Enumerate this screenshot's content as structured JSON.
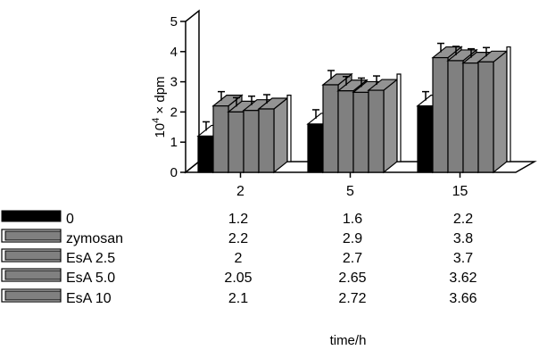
{
  "chart_data": {
    "type": "bar",
    "style": "3d",
    "categories": [
      "2",
      "5",
      "15"
    ],
    "series": [
      {
        "name": "0",
        "values": [
          1.2,
          1.6,
          2.2
        ],
        "color": "#000000"
      },
      {
        "name": "zymosan",
        "values": [
          2.2,
          2.9,
          3.8
        ],
        "color": "#808080"
      },
      {
        "name": "EsA 2.5",
        "values": [
          2,
          2.7,
          3.7
        ],
        "color": "#808080"
      },
      {
        "name": "EsA 5.0",
        "values": [
          2.05,
          2.65,
          3.62
        ],
        "color": "#808080"
      },
      {
        "name": "EsA 10",
        "values": [
          2.1,
          2.72,
          3.66
        ],
        "color": "#808080"
      }
    ],
    "table": [
      [
        "1.2",
        "1.6",
        "2.2"
      ],
      [
        "2.2",
        "2.9",
        "3.8"
      ],
      [
        "2",
        "2.7",
        "3.7"
      ],
      [
        "2.05",
        "2.65",
        "3.62"
      ],
      [
        "2.1",
        "2.72",
        "3.66"
      ]
    ],
    "error_bars": true,
    "ylim": [
      0,
      5
    ],
    "yticks": [
      "0",
      "1",
      "2",
      "3",
      "4",
      "5"
    ],
    "ylabel_base": "10",
    "ylabel_exp": "4",
    "ylabel_rest": " × dpm",
    "xlabel": "time/h",
    "grid": false,
    "legend": "table-below"
  }
}
